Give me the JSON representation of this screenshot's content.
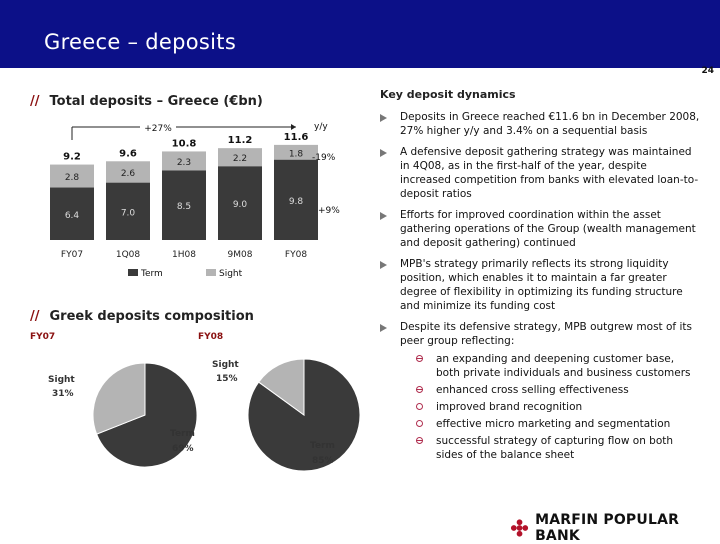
{
  "header": {
    "title": "Greece – deposits",
    "page_number": "24"
  },
  "left": {
    "deposits_heading": "Total deposits – Greece (€bn)",
    "composition_heading": "Greek deposits composition",
    "slashes": "//"
  },
  "chart_data": [
    {
      "type": "bar",
      "stacked": true,
      "categories": [
        "FY07",
        "1Q08",
        "1H08",
        "9M08",
        "FY08"
      ],
      "series": [
        {
          "name": "Term",
          "values": [
            6.4,
            7.0,
            8.5,
            9.0,
            9.8
          ],
          "color": "#3a3a3a"
        },
        {
          "name": "Sight",
          "values": [
            2.8,
            2.6,
            2.3,
            2.2,
            1.8
          ],
          "color": "#b4b4b4"
        }
      ],
      "totals": [
        9.2,
        9.6,
        10.8,
        11.2,
        11.6
      ],
      "ylim": [
        0,
        12
      ],
      "annotations": {
        "growth": "+27%",
        "yy": "y/y",
        "sight_change": "-19%",
        "term_change": "+9%"
      },
      "legend": "bottom"
    },
    {
      "type": "pie",
      "title": "FY07",
      "slices": [
        {
          "name": "Term",
          "value": 69,
          "label": "69%",
          "color": "#3a3a3a"
        },
        {
          "name": "Sight",
          "value": 31,
          "label": "31%",
          "color": "#b4b4b4"
        }
      ]
    },
    {
      "type": "pie",
      "title": "FY08",
      "slices": [
        {
          "name": "Term",
          "value": 85,
          "label": "85%",
          "color": "#3a3a3a"
        },
        {
          "name": "Sight",
          "value": 15,
          "label": "15%",
          "color": "#b4b4b4"
        }
      ]
    }
  ],
  "right": {
    "title": "Key deposit dynamics",
    "bullets": [
      "Deposits in Greece reached €11.6 bn in December 2008, 27% higher y/y and 3.4% on a sequential basis",
      "A defensive deposit gathering strategy was maintained in 4Q08, as in the first-half of the year, despite increased competition from banks with elevated loan-to-deposit ratios",
      "Efforts for improved coordination within the asset gathering operations of the Group (wealth management and deposit gathering) continued",
      "MPB's strategy primarily reflects its strong liquidity position, which enables it to maintain a far greater degree of flexibility in optimizing its funding structure and minimize its funding cost",
      "Despite its defensive strategy, MPB outgrew most of its peer group reflecting:"
    ],
    "sub_bullets": [
      "an expanding and deepening customer base, both private individuals and business customers",
      "enhanced cross selling effectiveness",
      "improved brand recognition",
      "effective micro marketing and segmentation",
      "successful strategy of capturing flow on both sides of the balance sheet"
    ]
  },
  "footer": {
    "logo_text": "MARFIN POPULAR BANK"
  }
}
